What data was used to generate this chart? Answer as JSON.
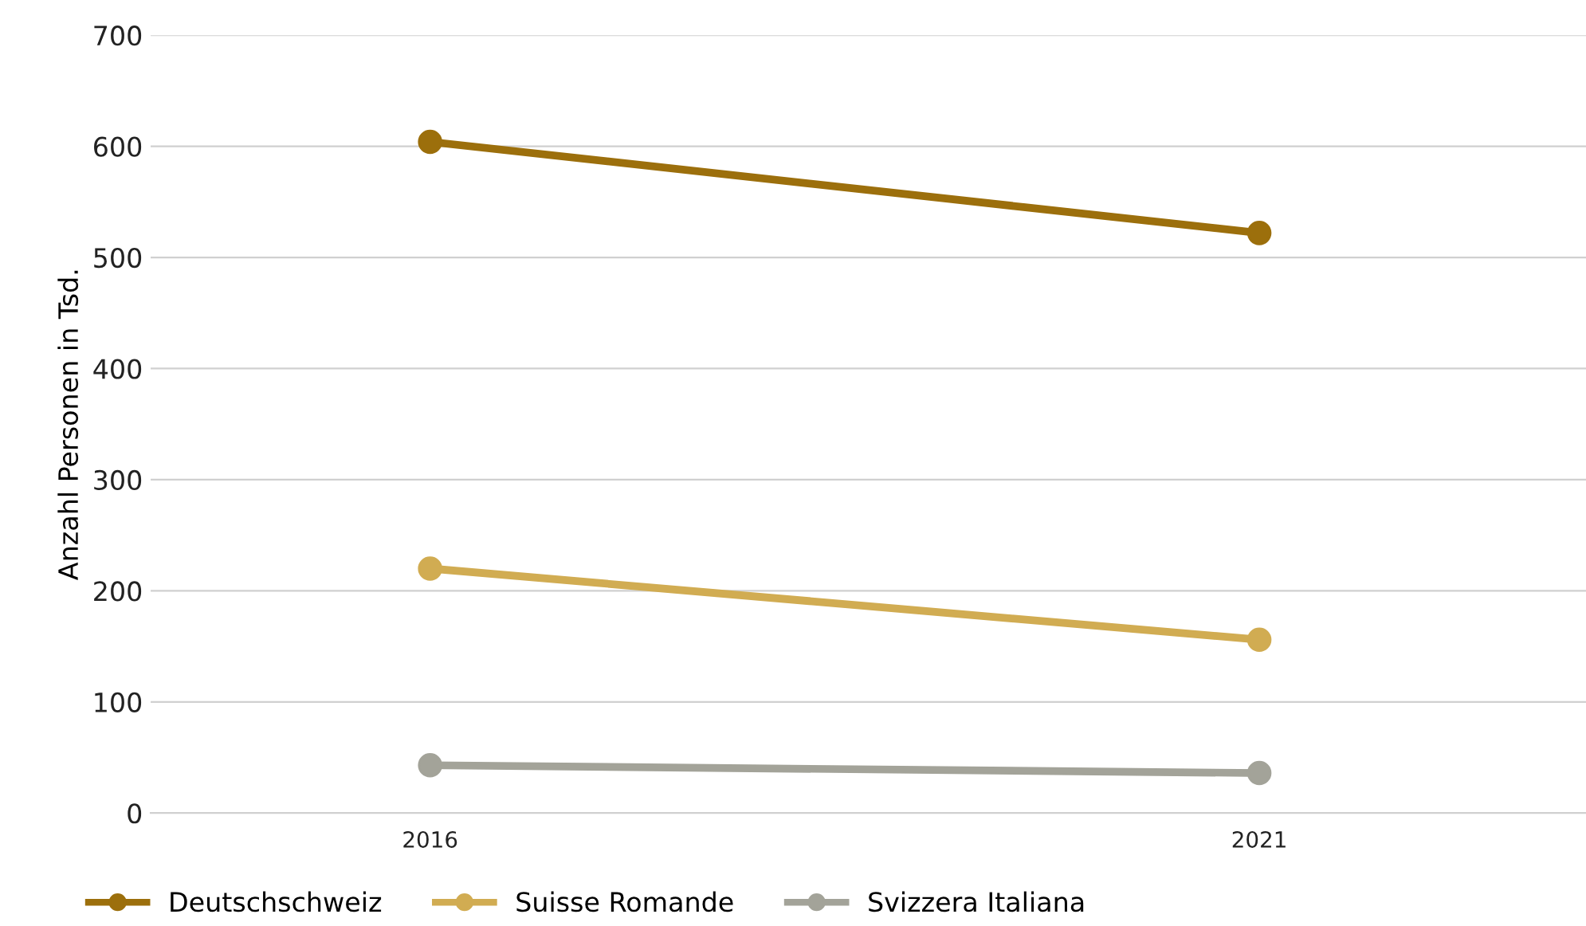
{
  "chart_data": {
    "type": "line",
    "ylabel": "Anzahl Personen in Tsd.",
    "categories": [
      "2016",
      "2021"
    ],
    "series": [
      {
        "name": "Deutschschweiz",
        "color": "#9c6f0c",
        "values": [
          604,
          522
        ]
      },
      {
        "name": "Suisse Romande",
        "color": "#d1ac52",
        "values": [
          220,
          156
        ]
      },
      {
        "name": "Svizzera Italiana",
        "color": "#a3a399",
        "values": [
          43,
          36
        ]
      }
    ],
    "ylim": [
      0,
      700
    ],
    "yticks": [
      0,
      100,
      200,
      300,
      400,
      500,
      600,
      700
    ],
    "grid": "y",
    "legend": "bottom left",
    "marker": "circle",
    "line_style": "solid"
  }
}
